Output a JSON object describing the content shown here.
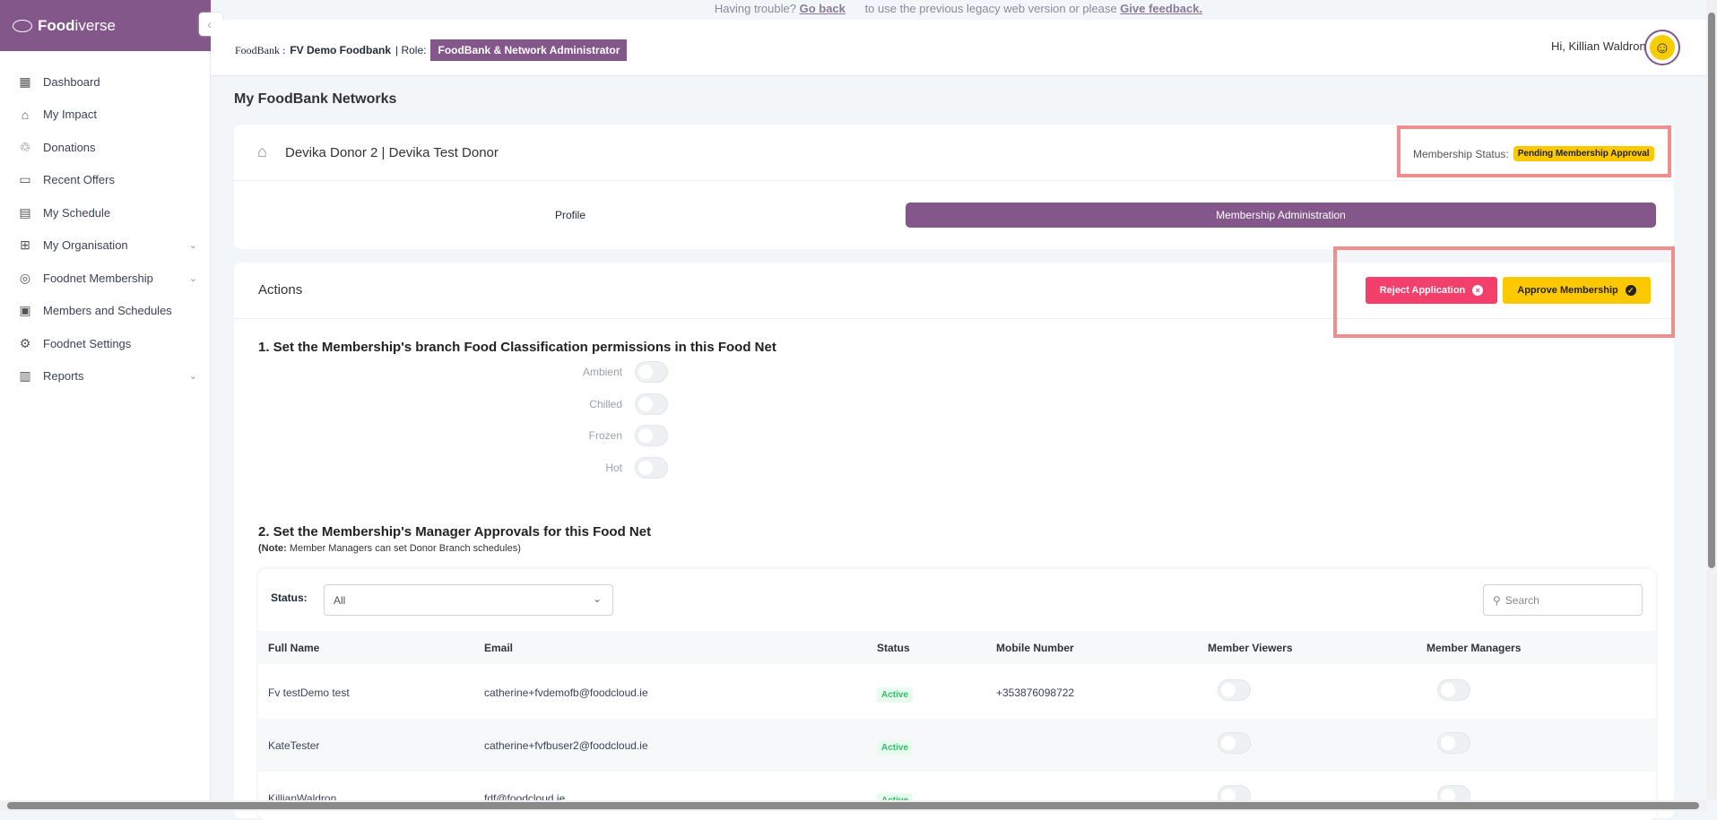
{
  "banner": {
    "text1": "Having trouble?",
    "link1": "Go back",
    "text2": "to use the previous legacy web version or please",
    "link2": "Give feedback."
  },
  "brand": {
    "name_bold": "Food",
    "name_rest": "iverse",
    "color": "#84578a"
  },
  "sidebar": {
    "items": [
      {
        "label": "Dashboard",
        "icon": "dashboard-icon"
      },
      {
        "label": "My Impact",
        "icon": "home-icon"
      },
      {
        "label": "Donations",
        "icon": "donation-icon"
      },
      {
        "label": "Recent Offers",
        "icon": "archive-icon"
      },
      {
        "label": "My Schedule",
        "icon": "calendar-icon"
      },
      {
        "label": "My Organisation",
        "icon": "org-icon",
        "expandable": true
      },
      {
        "label": "Foodnet Membership",
        "icon": "membership-icon",
        "expandable": true
      },
      {
        "label": "Members and Schedules",
        "icon": "contact-icon"
      },
      {
        "label": "Foodnet Settings",
        "icon": "gear-icon"
      },
      {
        "label": "Reports",
        "icon": "chart-icon",
        "expandable": true
      }
    ]
  },
  "header": {
    "foodbank_label": "FoodBank :",
    "foodbank": "FV Demo Foodbank",
    "role_label": "| Role:",
    "role": "FoodBank & Network Administrator",
    "greeting": "Hi, Killian Waldron"
  },
  "page": {
    "title": "My FoodBank Networks"
  },
  "org": {
    "name": "Devika Donor 2 | Devika Test Donor",
    "status_label": "Membership Status:",
    "status": "Pending Membership Approval"
  },
  "tabs": [
    {
      "label": "Profile",
      "active": false
    },
    {
      "label": "Membership Administration",
      "active": true
    }
  ],
  "actions": {
    "title": "Actions",
    "reject": "Reject Application",
    "approve": "Approve Membership"
  },
  "section1": {
    "title": "1. Set the Membership's branch Food Classification permissions in this Food Net",
    "toggles": [
      {
        "label": "Ambient",
        "on": false
      },
      {
        "label": "Chilled",
        "on": false
      },
      {
        "label": "Frozen",
        "on": false
      },
      {
        "label": "Hot",
        "on": false
      }
    ]
  },
  "section2": {
    "title": "2. Set the Membership's Manager Approvals for this Food Net",
    "note_bold": "(Note:",
    "note": "Member Managers can set Donor Branch schedules)"
  },
  "filter": {
    "label": "Status:",
    "value": "All",
    "search_placeholder": "Search"
  },
  "table": {
    "columns": [
      "Full Name",
      "Email",
      "Status",
      "Mobile Number",
      "Member Viewers",
      "Member Managers"
    ],
    "rows": [
      {
        "name": "Fv testDemo test",
        "email": "catherine+fvdemofb@foodcloud.ie",
        "status": "Active",
        "mobile": "+353876098722",
        "viewer": false,
        "manager": false
      },
      {
        "name": "KateTester",
        "email": "catherine+fvfbuser2@foodcloud.ie",
        "status": "Active",
        "mobile": "",
        "viewer": false,
        "manager": false
      },
      {
        "name": "KillianWaldron",
        "email": "fdf@foodcloud.ie",
        "status": "Active",
        "mobile": "",
        "viewer": false,
        "manager": false
      }
    ]
  }
}
